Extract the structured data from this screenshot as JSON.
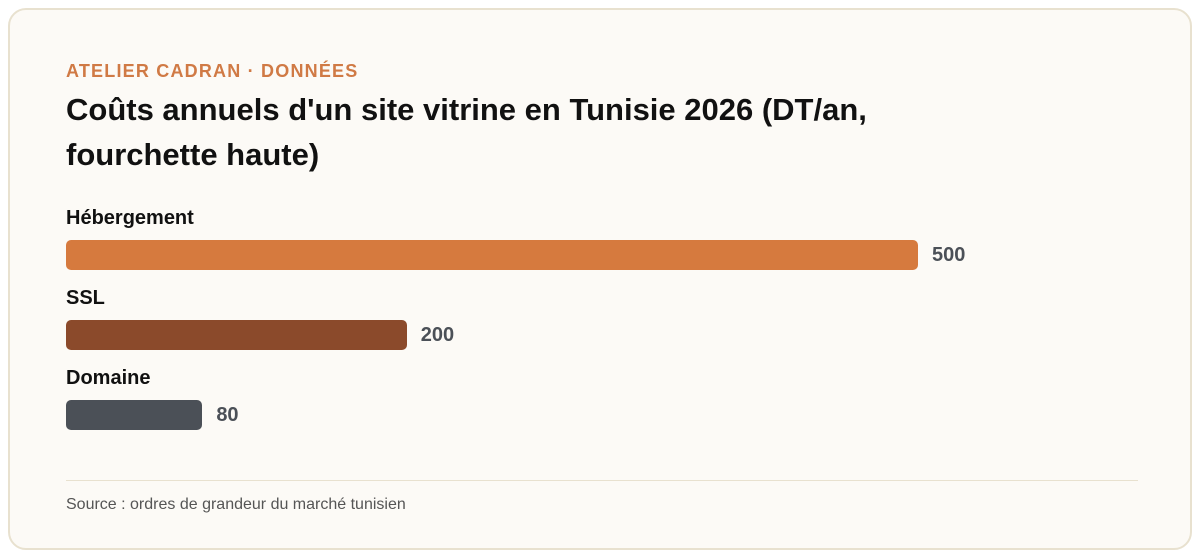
{
  "eyebrow": "ATELIER CADRAN · DONNÉES",
  "chart_data": {
    "type": "bar",
    "orientation": "horizontal",
    "title": "Coûts annuels d'un site vitrine en Tunisie 2026 (DT/an, fourchette haute)",
    "categories": [
      "Hébergement",
      "SSL",
      "Domaine"
    ],
    "values": [
      500,
      200,
      80
    ],
    "colors": [
      "#d67a3e",
      "#8b4a2b",
      "#4b5057"
    ]
  },
  "source": "Source : ordres de grandeur du marché tunisien"
}
